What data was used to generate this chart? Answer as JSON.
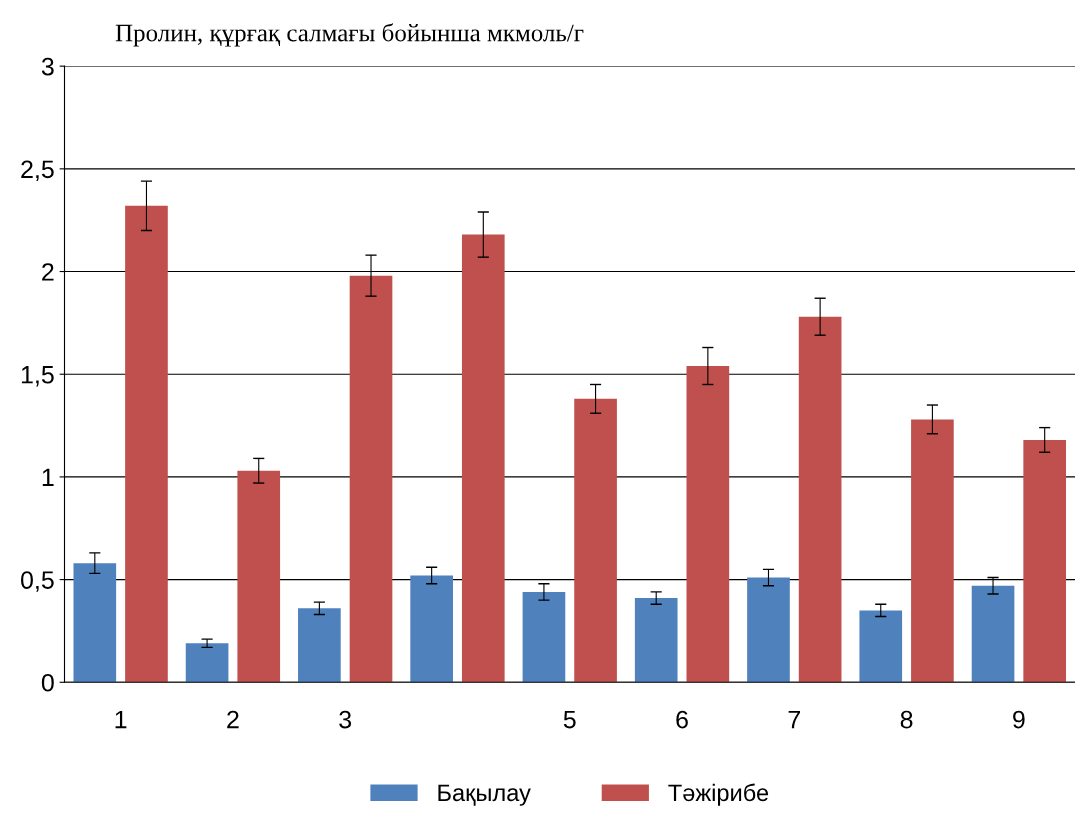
{
  "chart_data": {
    "type": "bar",
    "title": "Пролин, құрғақ салмағы бойынша мкмоль/г",
    "categories": [
      "1",
      "2",
      "3",
      null,
      "5",
      "6",
      "7",
      "8",
      "9"
    ],
    "series": [
      {
        "name": "Бақылау",
        "color": "#4f81bd",
        "values": [
          0.58,
          0.19,
          0.36,
          0.52,
          0.44,
          0.41,
          0.51,
          0.35,
          0.47
        ],
        "errors": [
          0.05,
          0.02,
          0.03,
          0.04,
          0.04,
          0.03,
          0.04,
          0.03,
          0.04
        ]
      },
      {
        "name": "Тәжірибе",
        "color": "#c0504d",
        "values": [
          2.32,
          1.03,
          1.98,
          2.18,
          1.38,
          1.54,
          1.78,
          1.28,
          1.18
        ],
        "errors": [
          0.12,
          0.06,
          0.1,
          0.11,
          0.07,
          0.09,
          0.09,
          0.07,
          0.06
        ]
      }
    ],
    "ylim": [
      0,
      3
    ],
    "yticks": [
      {
        "value": 0,
        "label": "0"
      },
      {
        "value": 0.5,
        "label": "0,5"
      },
      {
        "value": 1,
        "label": "1"
      },
      {
        "value": 1.5,
        "label": "1,5"
      },
      {
        "value": 2,
        "label": "2"
      },
      {
        "value": 2.5,
        "label": "2,5"
      },
      {
        "value": 3,
        "label": "3"
      }
    ],
    "grid": "y",
    "legend": "bottom"
  }
}
